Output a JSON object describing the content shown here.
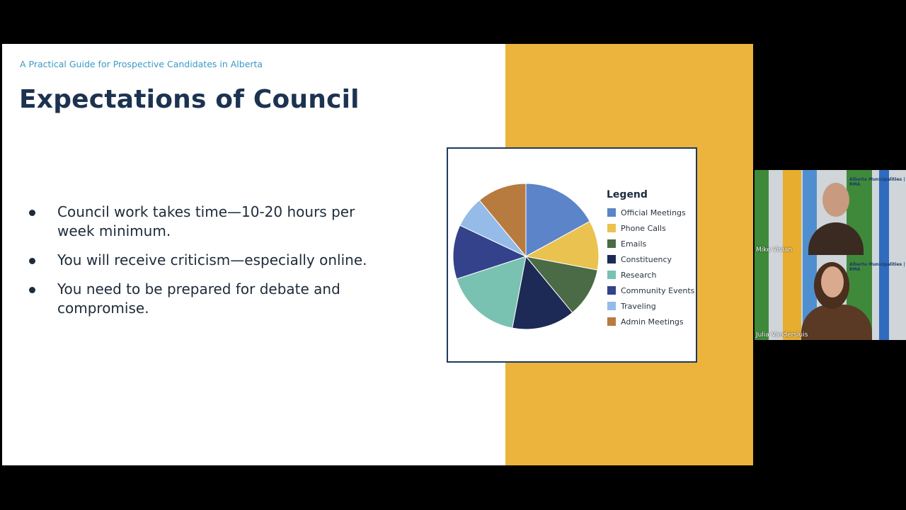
{
  "slide": {
    "kicker": "A Practical Guide for Prospective Candidates in Alberta",
    "title": "Expectations of Council",
    "bullets": [
      "Council work takes time—10-20 hours per week minimum.",
      "You will receive criticism—especially online.",
      "You need to be prepared for debate and compromise."
    ],
    "colors": {
      "kicker": "#3a9ac4",
      "title": "#1c3350",
      "accent": "#ecb43c"
    }
  },
  "chart_data": {
    "type": "pie",
    "legend_title": "Legend",
    "legend_position": "right",
    "slices": [
      {
        "label": "Official Meetings",
        "value": 17,
        "color": "#5b84c9"
      },
      {
        "label": "Phone Calls",
        "value": 11,
        "color": "#e9c24f"
      },
      {
        "label": "Emails",
        "value": 11,
        "color": "#4a6b45"
      },
      {
        "label": "Constituency",
        "value": 14,
        "color": "#1c2a55"
      },
      {
        "label": "Research",
        "value": 17,
        "color": "#79c1b1"
      },
      {
        "label": "Community Events",
        "value": 12,
        "color": "#33428a"
      },
      {
        "label": "Traveling",
        "value": 7,
        "color": "#95bbe8"
      },
      {
        "label": "Admin Meetings",
        "value": 11,
        "color": "#b77b3f"
      }
    ]
  },
  "participants": [
    {
      "name": "Mike Vivian",
      "logo_text": "Alberta Municipalities | RMA"
    },
    {
      "name": "Julia Vandersluis",
      "logo_text": "Alberta Municipalities | RMA"
    }
  ]
}
